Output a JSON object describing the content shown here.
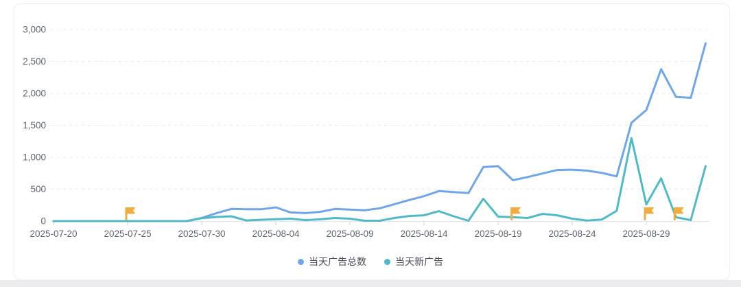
{
  "legend": {
    "items": [
      {
        "label": "当天广告总数",
        "color": "#6fa5ea"
      },
      {
        "label": "当天新广告",
        "color": "#4fb9c8"
      }
    ]
  },
  "colors": {
    "series_total": "#6fa5ea",
    "series_new": "#4fb9c8",
    "flag": "#f2ab3e",
    "grid_line": "#e4e8f3",
    "axis_line": "#e2e5eb",
    "tick": "#cbcfd8",
    "axis_text": "#5e6470",
    "legend_text": "#4a4e59",
    "card_border": "#ededf5"
  },
  "chart_data": {
    "type": "line",
    "title": "",
    "xlabel": "",
    "ylabel": "",
    "ylim": [
      0,
      3000
    ],
    "grid": "horizontal dashed",
    "legend_position": "bottom",
    "x": [
      "2025-07-20",
      "2025-07-21",
      "2025-07-22",
      "2025-07-23",
      "2025-07-24",
      "2025-07-25",
      "2025-07-26",
      "2025-07-27",
      "2025-07-28",
      "2025-07-29",
      "2025-07-30",
      "2025-07-31",
      "2025-08-01",
      "2025-08-02",
      "2025-08-03",
      "2025-08-04",
      "2025-08-05",
      "2025-08-06",
      "2025-08-07",
      "2025-08-08",
      "2025-08-09",
      "2025-08-10",
      "2025-08-11",
      "2025-08-12",
      "2025-08-13",
      "2025-08-14",
      "2025-08-15",
      "2025-08-16",
      "2025-08-17",
      "2025-08-18",
      "2025-08-19",
      "2025-08-20",
      "2025-08-21",
      "2025-08-22",
      "2025-08-23",
      "2025-08-24",
      "2025-08-25",
      "2025-08-26",
      "2025-08-27",
      "2025-08-28",
      "2025-08-29",
      "2025-08-30",
      "2025-08-31",
      "2025-09-01",
      "2025-09-02"
    ],
    "series": [
      {
        "name": "当天广告总数",
        "color": "#6fa5ea",
        "values": [
          0,
          0,
          0,
          0,
          0,
          0,
          0,
          0,
          0,
          0,
          50,
          125,
          190,
          185,
          185,
          215,
          135,
          125,
          145,
          190,
          180,
          170,
          200,
          265,
          330,
          390,
          470,
          455,
          440,
          845,
          860,
          640,
          690,
          745,
          800,
          805,
          790,
          755,
          700,
          1540,
          1740,
          2380,
          1945,
          1930,
          2785
        ]
      },
      {
        "name": "当天新广告",
        "color": "#4fb9c8",
        "values": [
          0,
          0,
          0,
          0,
          0,
          0,
          0,
          0,
          0,
          0,
          45,
          65,
          75,
          10,
          20,
          30,
          38,
          15,
          28,
          48,
          38,
          5,
          5,
          48,
          80,
          90,
          155,
          75,
          5,
          350,
          70,
          60,
          48,
          113,
          90,
          38,
          8,
          25,
          160,
          1300,
          260,
          670,
          60,
          15,
          860
        ]
      }
    ],
    "y_ticks": [
      0,
      500,
      1000,
      1500,
      2000,
      2500,
      3000
    ],
    "y_tick_labels": [
      "0",
      "500",
      "1,000",
      "1,500",
      "2,000",
      "2,500",
      "3,000"
    ],
    "x_tick_labels": [
      "2025-07-20",
      "2025-07-25",
      "2025-07-30",
      "2025-08-04",
      "2025-08-09",
      "2025-08-14",
      "2025-08-19",
      "2025-08-24",
      "2025-08-29"
    ],
    "x_tick_step": 5,
    "markers": {
      "symbol": "flag",
      "color": "#f2ab3e",
      "dates": [
        "2025-07-25",
        "2025-08-20",
        "2025-08-29",
        "2025-08-31"
      ]
    }
  }
}
